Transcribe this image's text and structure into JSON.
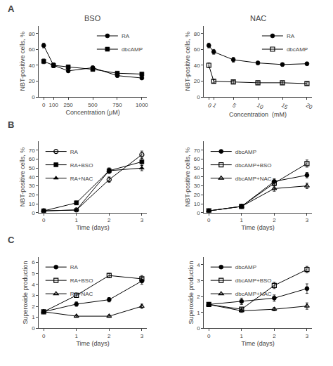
{
  "chart_data": [
    {
      "type": "line",
      "title": "BSO",
      "annotations": [
        "A"
      ],
      "xlabel": "Concentration (μM)",
      "ylabel": "NBT-positive cells, %",
      "x": [
        0,
        100,
        250,
        500,
        750,
        1000
      ],
      "series": [
        {
          "name": "RA",
          "color": "black",
          "marker": "circle",
          "values": [
            65,
            40,
            33,
            37,
            27,
            24
          ],
          "errors": [
            3,
            3,
            2,
            2,
            2,
            2
          ]
        },
        {
          "name": "dbcAMP",
          "color": "black",
          "marker": "square",
          "values": [
            45,
            40,
            38,
            35,
            30,
            29
          ],
          "errors": [
            3,
            3,
            2,
            2,
            2,
            2
          ]
        }
      ],
      "xlim": [
        -50,
        1050
      ],
      "xticks": [
        0,
        100,
        250,
        500,
        750,
        1000
      ],
      "ylim": [
        0,
        90
      ],
      "yticks": [
        0,
        20,
        40,
        60,
        80
      ],
      "legend": "upper right",
      "grid": false
    },
    {
      "type": "line",
      "title": "NAC",
      "xlabel": "Concentration  (mM)",
      "ylabel": "NBT-positive cells, %",
      "x": [
        0,
        1,
        5,
        10,
        15,
        20
      ],
      "series": [
        {
          "name": "RA",
          "color": "black",
          "marker": "circle",
          "values": [
            65,
            57,
            47,
            43,
            41,
            42
          ],
          "errors": [
            3,
            3,
            3,
            2,
            2,
            2
          ]
        },
        {
          "name": "dbcAMP",
          "color": "black",
          "marker": "square-open",
          "values": [
            40,
            20,
            19,
            18,
            18,
            17
          ],
          "errors": [
            3,
            2,
            2,
            2,
            2,
            2
          ]
        }
      ],
      "xlim": [
        -1,
        21
      ],
      "xticks": [
        0,
        1,
        5,
        10,
        15,
        20
      ],
      "ylim": [
        0,
        90
      ],
      "yticks": [
        0,
        20,
        40,
        60,
        80
      ],
      "legend": "upper right",
      "grid": false
    },
    {
      "type": "line",
      "annotations": [
        "B"
      ],
      "xlabel": "Time (days)",
      "ylabel": "NBT-positive cells, %",
      "x": [
        0,
        1,
        2,
        3
      ],
      "series": [
        {
          "name": "RA",
          "color": "black",
          "marker": "circle-open",
          "values": [
            2,
            3,
            37,
            65
          ],
          "errors": [
            1,
            1,
            3,
            4
          ]
        },
        {
          "name": "RA+BSO",
          "color": "black",
          "marker": "square",
          "values": [
            2,
            11,
            47,
            57
          ],
          "errors": [
            1,
            2,
            3,
            4
          ]
        },
        {
          "name": "RA+NAC",
          "color": "black",
          "marker": "triangle-up",
          "values": [
            2,
            3,
            47,
            50
          ],
          "errors": [
            1,
            1,
            3,
            3
          ]
        }
      ],
      "xlim": [
        -0.15,
        3.15
      ],
      "xticks": [
        0,
        1,
        2,
        3
      ],
      "ylim": [
        0,
        80
      ],
      "yticks": [
        0,
        10,
        20,
        30,
        40,
        50,
        60,
        70
      ],
      "legend": "upper left",
      "grid": false
    },
    {
      "type": "line",
      "xlabel": "Time (days)",
      "ylabel": "NBT-positive cells, %",
      "x": [
        0,
        1,
        2,
        3
      ],
      "series": [
        {
          "name": "dbcAMP",
          "color": "black",
          "marker": "circle",
          "values": [
            2,
            7,
            35,
            42
          ],
          "errors": [
            1,
            2,
            3,
            3
          ]
        },
        {
          "name": "dbcAMP+BSO",
          "color": "black",
          "marker": "square-open",
          "values": [
            2,
            7,
            33,
            55
          ],
          "errors": [
            1,
            2,
            3,
            4
          ]
        },
        {
          "name": "dbcAMP+NAC",
          "color": "black",
          "marker": "triangle-up-open",
          "values": [
            2,
            7,
            27,
            30
          ],
          "errors": [
            1,
            2,
            3,
            3
          ]
        }
      ],
      "xlim": [
        -0.15,
        3.15
      ],
      "xticks": [
        0,
        1,
        2,
        3
      ],
      "ylim": [
        0,
        80
      ],
      "yticks": [
        0,
        10,
        20,
        30,
        40,
        50,
        60,
        70
      ],
      "legend": "upper left",
      "grid": false
    },
    {
      "type": "line",
      "annotations": [
        "C"
      ],
      "xlabel": "Time (days)",
      "ylabel": "Superoxide production",
      "x": [
        0,
        1,
        2,
        3
      ],
      "series": [
        {
          "name": "RA",
          "color": "black",
          "marker": "circle",
          "values": [
            1.5,
            2.2,
            2.6,
            4.3
          ],
          "errors": [
            0.1,
            0.2,
            0.2,
            0.3
          ]
        },
        {
          "name": "RA+BSO",
          "color": "black",
          "marker": "square-open",
          "values": [
            1.5,
            3.0,
            4.8,
            4.5
          ],
          "errors": [
            0.1,
            0.2,
            0.2,
            0.3
          ]
        },
        {
          "name": "RA+NAC",
          "color": "black",
          "marker": "triangle-up-open",
          "values": [
            1.5,
            1.1,
            1.1,
            2.0
          ],
          "errors": [
            0.1,
            0.1,
            0.1,
            0.2
          ]
        }
      ],
      "xlim": [
        -0.15,
        3.15
      ],
      "xticks": [
        0,
        1,
        2,
        3
      ],
      "ylim": [
        0,
        6.5
      ],
      "yticks": [
        0,
        1,
        2,
        3,
        4,
        5,
        6
      ],
      "legend": "upper left",
      "grid": false
    },
    {
      "type": "line",
      "xlabel": "Time (days)",
      "ylabel": "Superoxide production",
      "x": [
        0,
        1,
        2,
        3
      ],
      "series": [
        {
          "name": "dbcAMP",
          "color": "black",
          "marker": "circle",
          "values": [
            1.5,
            1.7,
            1.9,
            2.5
          ],
          "errors": [
            0.1,
            0.2,
            0.2,
            0.3
          ]
        },
        {
          "name": "dbcAMP+BSO",
          "color": "black",
          "marker": "square-open",
          "values": [
            1.5,
            1.2,
            2.7,
            3.7
          ],
          "errors": [
            0.1,
            0.1,
            0.2,
            0.2
          ]
        },
        {
          "name": "dbcAMP+NAC",
          "color": "black",
          "marker": "triangle-up-open",
          "values": [
            1.5,
            1.1,
            1.2,
            1.4
          ],
          "errors": [
            0.1,
            0.1,
            0.1,
            0.2
          ]
        }
      ],
      "xlim": [
        -0.15,
        3.15
      ],
      "xticks": [
        0,
        1,
        2,
        3
      ],
      "ylim": [
        0,
        4.5
      ],
      "yticks": [
        0,
        1,
        2,
        3,
        4
      ],
      "legend": "upper left",
      "grid": false
    }
  ]
}
